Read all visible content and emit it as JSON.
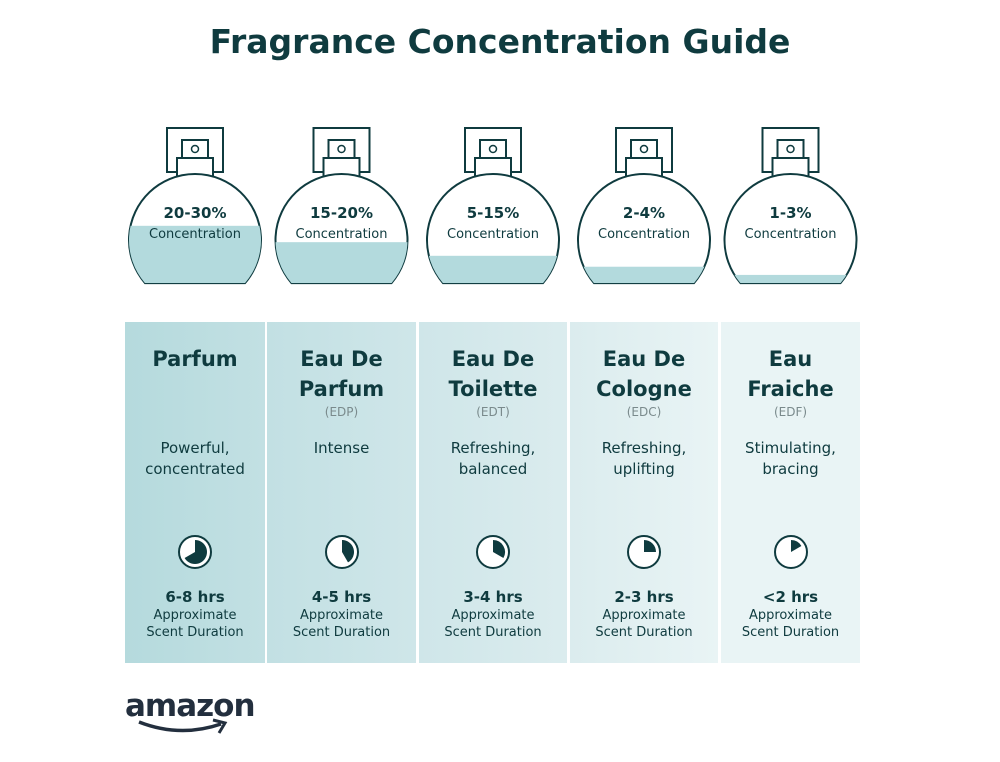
{
  "title": "Fragrance Concentration Guide",
  "colors": {
    "text": "#0f3b3f",
    "liquid": "#b3dadd",
    "panel_start": "#b5dadd",
    "panel_end": "#eef7f8"
  },
  "types": [
    {
      "percent": "20-30%",
      "concentration_label": "Concentration",
      "fill_level": 0.42,
      "name_lines": [
        "Parfum"
      ],
      "abbr": "",
      "desc_lines": [
        "Powerful,",
        "concentrated"
      ],
      "clock_icon": "clock-pie-icon",
      "clock_fill_hours": 8,
      "duration": "6-8 hrs",
      "duration_lines": [
        "Approximate",
        "Scent Duration"
      ]
    },
    {
      "percent": "15-20%",
      "concentration_label": "Concentration",
      "fill_level": 0.3,
      "name_lines": [
        "Eau De",
        "Parfum"
      ],
      "abbr": "(EDP)",
      "desc_lines": [
        "Intense"
      ],
      "clock_icon": "clock-pie-icon",
      "clock_fill_hours": 5,
      "duration": "4-5 hrs",
      "duration_lines": [
        "Approximate",
        "Scent Duration"
      ]
    },
    {
      "percent": "5-15%",
      "concentration_label": "Concentration",
      "fill_level": 0.2,
      "name_lines": [
        "Eau De",
        "Toilette"
      ],
      "abbr": "(EDT)",
      "desc_lines": [
        "Refreshing,",
        "balanced"
      ],
      "clock_icon": "clock-pie-icon",
      "clock_fill_hours": 4,
      "duration": "3-4 hrs",
      "duration_lines": [
        "Approximate",
        "Scent Duration"
      ]
    },
    {
      "percent": "2-4%",
      "concentration_label": "Concentration",
      "fill_level": 0.12,
      "name_lines": [
        "Eau De",
        "Cologne"
      ],
      "abbr": "(EDC)",
      "desc_lines": [
        "Refreshing,",
        "uplifting"
      ],
      "clock_icon": "clock-pie-icon",
      "clock_fill_hours": 3,
      "duration": "2-3 hrs",
      "duration_lines": [
        "Approximate",
        "Scent Duration"
      ]
    },
    {
      "percent": "1-3%",
      "concentration_label": "Concentration",
      "fill_level": 0.06,
      "name_lines": [
        "Eau",
        "Fraiche"
      ],
      "abbr": "(EDF)",
      "desc_lines": [
        "Stimulating,",
        "bracing"
      ],
      "clock_icon": "clock-pie-icon",
      "clock_fill_hours": 2,
      "duration": "<2 hrs",
      "duration_lines": [
        "Approximate",
        "Scent Duration"
      ]
    }
  ],
  "logo": "amazon"
}
